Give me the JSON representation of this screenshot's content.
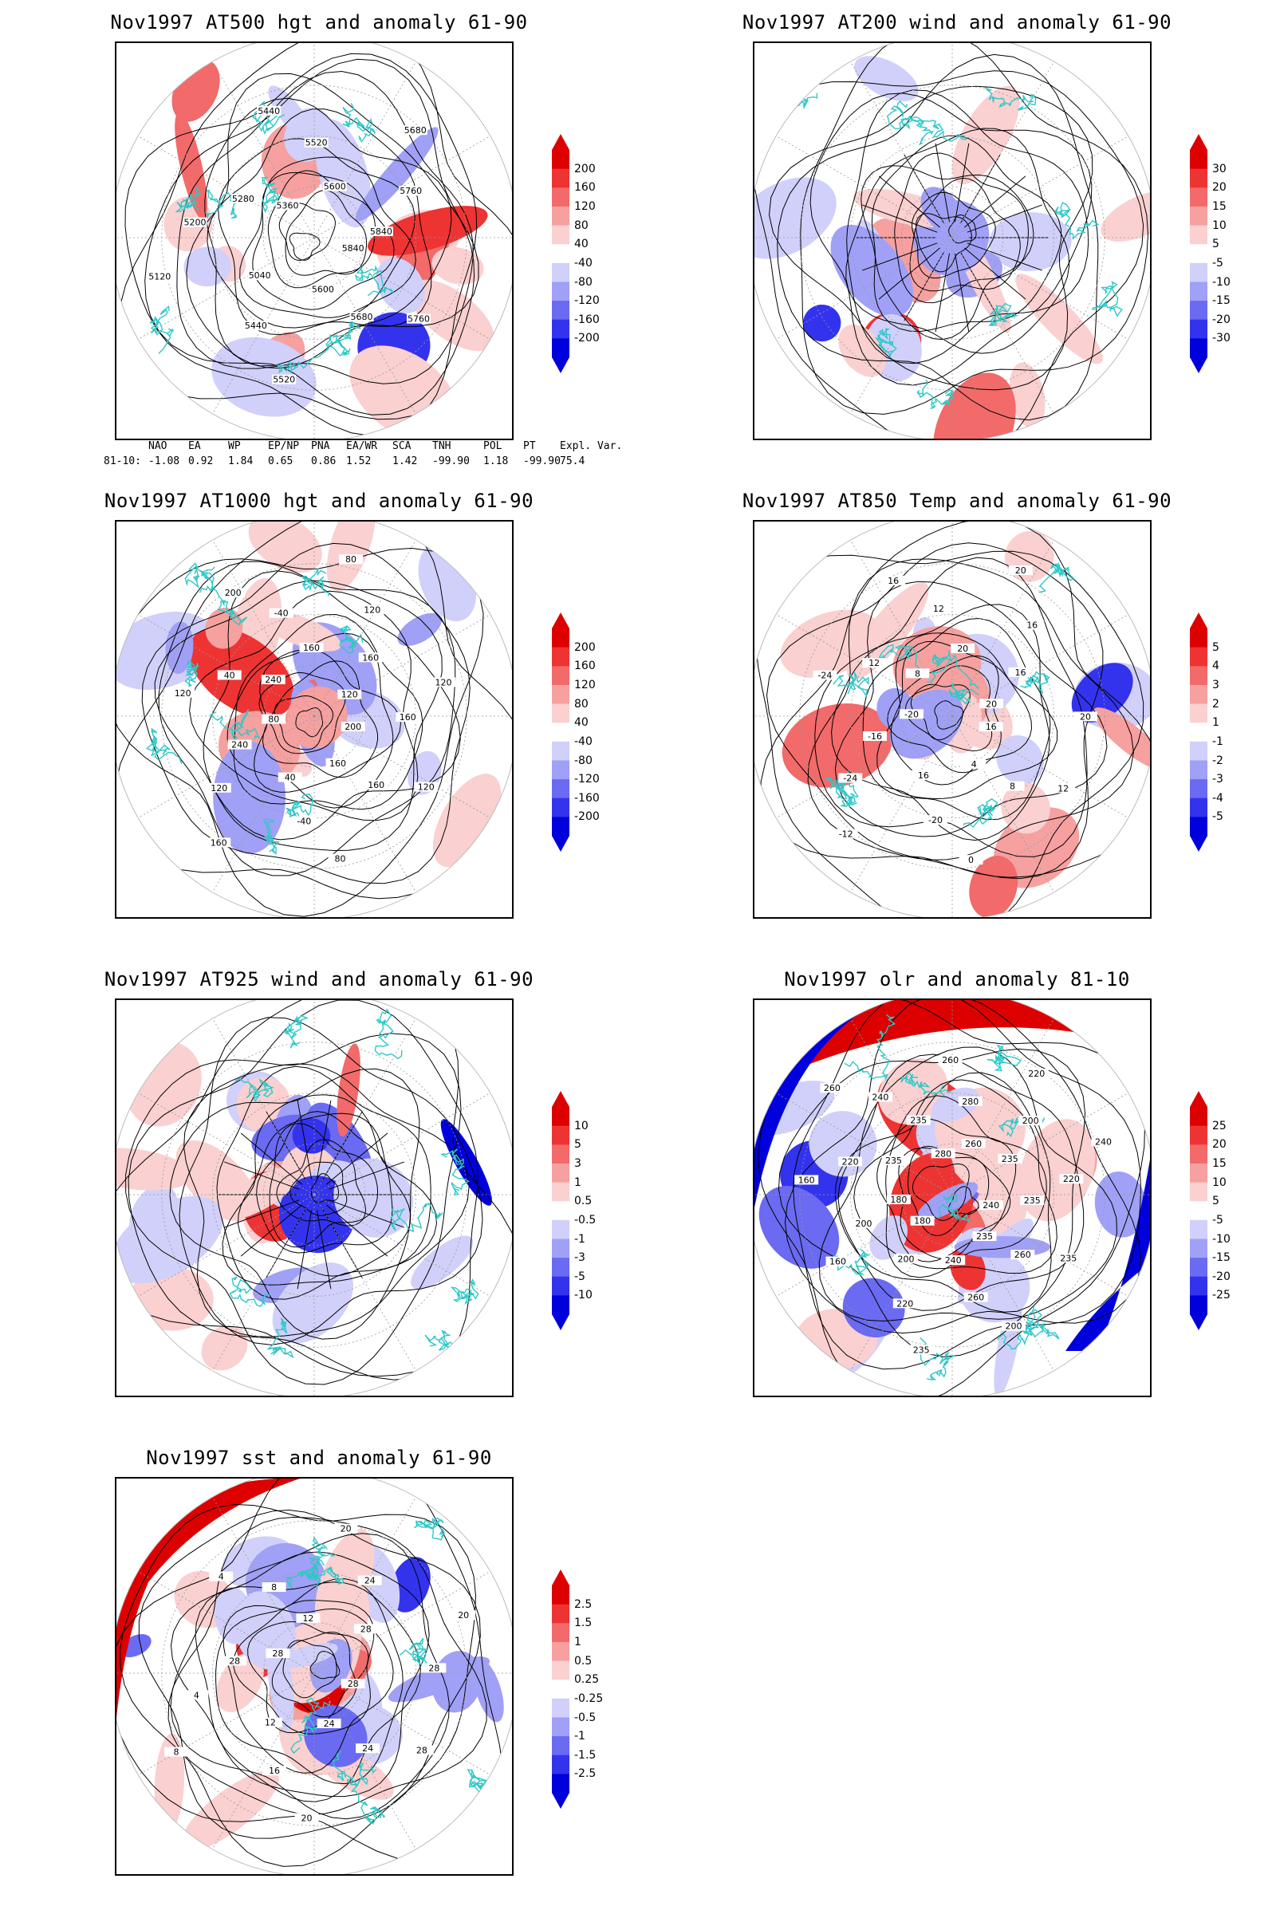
{
  "panels": [
    {
      "id": "p500",
      "title": "Nov1997 AT500 hgt and anomaly 61-90",
      "pos": [
        0,
        0
      ],
      "colorbar": [
        "200",
        "160",
        "120",
        "80",
        "40",
        "-40",
        "-80",
        "-120",
        "-160",
        "-200"
      ],
      "contour_labels": [
        "5840",
        "5760",
        "5680",
        "5600",
        "5520",
        "5440",
        "5040",
        "5120",
        "5200",
        "5280",
        "5360",
        "5440",
        "5520",
        "5600",
        "5680",
        "5760",
        "5840"
      ],
      "indices": {
        "headers": [
          "NAO",
          "EA",
          "WP",
          "EP/NP",
          "PNA",
          "EA/WR",
          "SCA",
          "TNH",
          "POL",
          "PT",
          "Expl. Var."
        ],
        "row_label": "81-10:",
        "values": [
          "-1.08",
          "0.92",
          "1.84",
          "0.65",
          "0.86",
          "1.52",
          "1.42",
          "-99.90",
          "1.18",
          "-99.90",
          "75.4"
        ]
      }
    },
    {
      "id": "p200",
      "title": "Nov1997 AT200 wind and anomaly 61-90",
      "pos": [
        800,
        0
      ],
      "colorbar": [
        "30",
        "20",
        "15",
        "10",
        "5",
        "-5",
        "-10",
        "-15",
        "-20",
        "-30"
      ],
      "contour_labels": []
    },
    {
      "id": "p1000",
      "title": "Nov1997 AT1000 hgt and anomaly 61-90",
      "pos": [
        0,
        600
      ],
      "colorbar": [
        "200",
        "160",
        "120",
        "80",
        "40",
        "-40",
        "-80",
        "-120",
        "-160",
        "-200"
      ],
      "contour_labels": [
        "200",
        "120",
        "160",
        "160",
        "80",
        "-40",
        "40",
        "160",
        "120",
        "240",
        "80",
        "120",
        "40",
        "240",
        "200",
        "-40",
        "160",
        "80",
        "120",
        "160",
        "120",
        "120",
        "160"
      ]
    },
    {
      "id": "p850",
      "title": "Nov1997 AT850 Temp and anomaly 61-90",
      "pos": [
        800,
        600
      ],
      "colorbar": [
        "5",
        "4",
        "3",
        "2",
        "1",
        "-1",
        "-2",
        "-3",
        "-4",
        "-5"
      ],
      "contour_labels": [
        "16",
        "12",
        "8",
        "4",
        "0",
        "-20",
        "16",
        "-12",
        "-24",
        "-16",
        "-20",
        "-24",
        "12",
        "8",
        "16",
        "12",
        "20",
        "20",
        "16",
        "16",
        "20",
        "20"
      ]
    },
    {
      "id": "p925",
      "title": "Nov1997 AT925 wind and anomaly 61-90",
      "pos": [
        0,
        1200
      ],
      "colorbar": [
        "10",
        "5",
        "3",
        "1",
        "0.5",
        "-0.5",
        "-1",
        "-3",
        "-5",
        "-10"
      ],
      "contour_labels": []
    },
    {
      "id": "polr",
      "title": "Nov1997 olr and anomaly 81-10",
      "pos": [
        800,
        1200
      ],
      "colorbar": [
        "25",
        "20",
        "15",
        "10",
        "5",
        "-5",
        "-10",
        "-15",
        "-20",
        "-25"
      ],
      "contour_labels": [
        "240",
        "235",
        "260",
        "235",
        "200",
        "260",
        "240",
        "235",
        "220",
        "200",
        "180",
        "160",
        "200",
        "180",
        "160",
        "220",
        "235",
        "260",
        "240",
        "235",
        "280",
        "260",
        "280",
        "260",
        "220",
        "200",
        "235",
        "240",
        "220",
        "235"
      ]
    },
    {
      "id": "psst",
      "title": "Nov1997 sst and anomaly 61-90",
      "pos": [
        0,
        1800
      ],
      "colorbar": [
        "2.5",
        "1.5",
        "1",
        "0.5",
        "0.25",
        "-0.25",
        "-0.5",
        "-1",
        "-1.5",
        "-2.5"
      ],
      "contour_labels": [
        "28",
        "28",
        "24",
        "24",
        "20",
        "16",
        "12",
        "8",
        "4",
        "28",
        "28",
        "4",
        "8",
        "12",
        "20",
        "24",
        "28",
        "20",
        "28"
      ]
    }
  ],
  "colors": {
    "pos": [
      "#dd0000",
      "#ee3333",
      "#f26a6a",
      "#f6a0a0",
      "#fad0d0"
    ],
    "neg": [
      "#d0d0fa",
      "#a0a0f6",
      "#6a6af2",
      "#3333ee",
      "#0000dd"
    ],
    "coast": "#2ec8c8",
    "contour": "#000000"
  }
}
